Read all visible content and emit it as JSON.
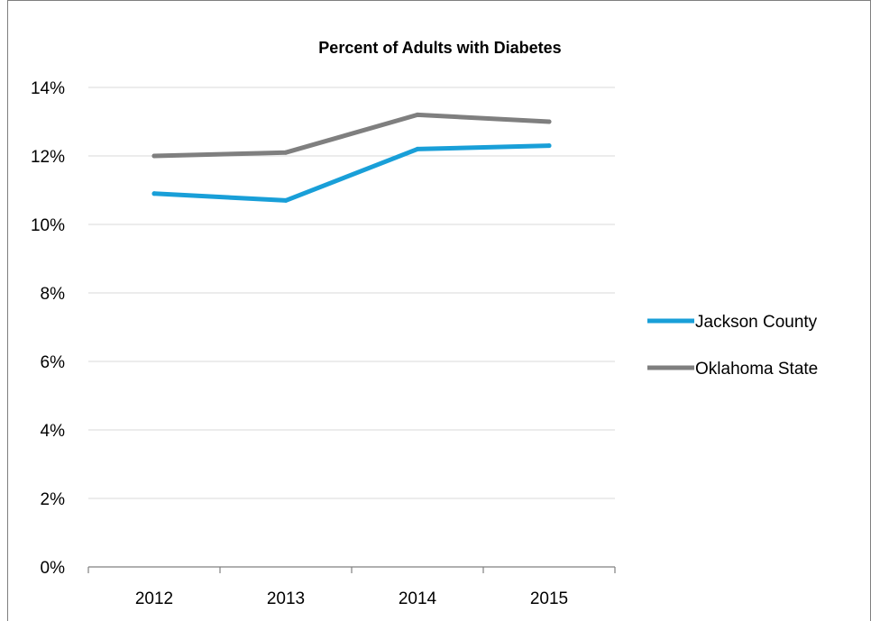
{
  "chart_data": {
    "type": "line",
    "title": "Percent of Adults with Diabetes",
    "xlabel": "",
    "ylabel": "",
    "categories": [
      "2012",
      "2013",
      "2014",
      "2015"
    ],
    "ylim": [
      0,
      14
    ],
    "yticks": [
      0,
      2,
      4,
      6,
      8,
      10,
      12,
      14
    ],
    "ytick_labels": [
      "0%",
      "2%",
      "4%",
      "6%",
      "8%",
      "10%",
      "12%",
      "14%"
    ],
    "grid": true,
    "legend_position": "right",
    "series": [
      {
        "name": "Jackson County",
        "values": [
          10.9,
          10.7,
          12.2,
          12.3
        ],
        "color": "#199fd8"
      },
      {
        "name": "Oklahoma State",
        "values": [
          12.0,
          12.1,
          13.2,
          13.0
        ],
        "color": "#7f7f7f"
      }
    ]
  }
}
